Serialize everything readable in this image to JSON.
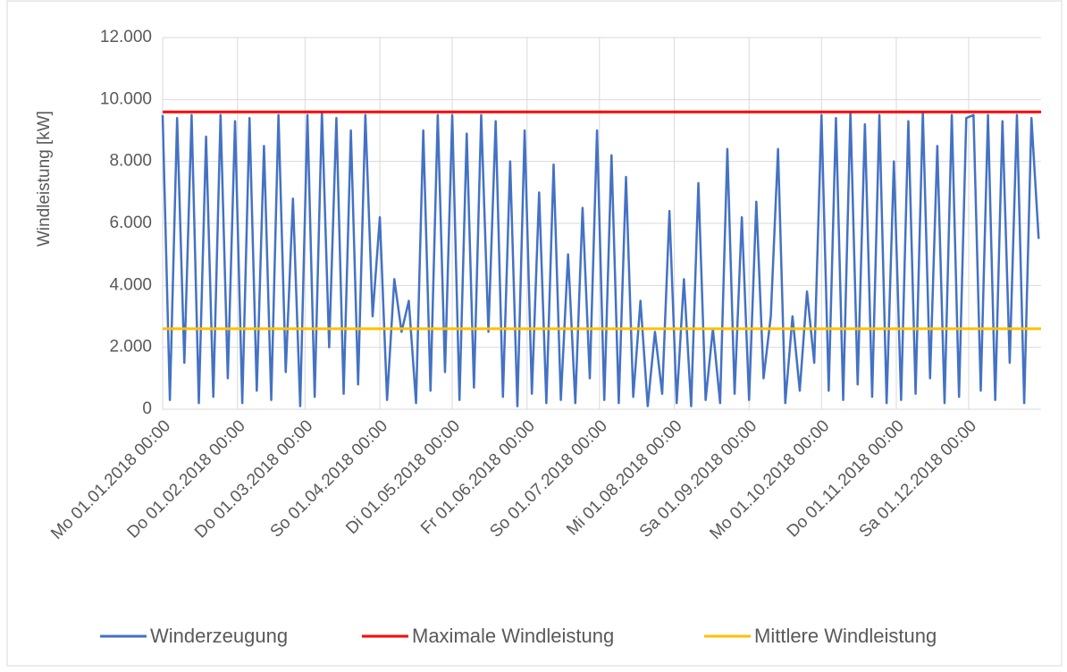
{
  "chart_data": {
    "type": "line",
    "ylabel": "Windleistung [kW]",
    "ylim": [
      0,
      12000
    ],
    "yticks": [
      0,
      {
        "value": 2000,
        "label": "2.000"
      },
      {
        "value": 4000,
        "label": "4.000"
      },
      {
        "value": 6000,
        "label": "6.000"
      },
      {
        "value": 8000,
        "label": "8.000"
      },
      {
        "value": 10000,
        "label": "10.000"
      },
      {
        "value": 12000,
        "label": "12.000"
      }
    ],
    "xlim": [
      "2018-01-01",
      "2018-12-31"
    ],
    "xticks": [
      {
        "value": "2018-01-01",
        "label": "Mo 01.01.2018 00:00"
      },
      {
        "value": "2018-02-01",
        "label": "Do 01.02.2018 00:00"
      },
      {
        "value": "2018-03-01",
        "label": "Do 01.03.2018 00:00"
      },
      {
        "value": "2018-04-01",
        "label": "So 01.04.2018 00:00"
      },
      {
        "value": "2018-05-01",
        "label": "Di 01.05.2018 00:00"
      },
      {
        "value": "2018-06-01",
        "label": "Fr 01.06.2018 00:00"
      },
      {
        "value": "2018-07-01",
        "label": "So 01.07.2018 00:00"
      },
      {
        "value": "2018-08-01",
        "label": "Mi 01.08.2018 00:00"
      },
      {
        "value": "2018-09-01",
        "label": "Sa 01.09.2018 00:00"
      },
      {
        "value": "2018-10-01",
        "label": "Mo 01.10.2018 00:00"
      },
      {
        "value": "2018-11-01",
        "label": "Do 01.11.2018 00:00"
      },
      {
        "value": "2018-12-01",
        "label": "Sa 01.12.2018 00:00"
      }
    ],
    "grid": true,
    "legend": "bottom",
    "series": [
      {
        "name": "Winderzeugung",
        "color": "#4472c4",
        "x": [
          "2018-01-01",
          "2018-01-04",
          "2018-01-07",
          "2018-01-10",
          "2018-01-13",
          "2018-01-16",
          "2018-01-19",
          "2018-01-22",
          "2018-01-25",
          "2018-01-28",
          "2018-01-31",
          "2018-02-03",
          "2018-02-06",
          "2018-02-09",
          "2018-02-12",
          "2018-02-15",
          "2018-02-18",
          "2018-02-21",
          "2018-02-24",
          "2018-02-27",
          "2018-03-02",
          "2018-03-05",
          "2018-03-08",
          "2018-03-11",
          "2018-03-14",
          "2018-03-17",
          "2018-03-20",
          "2018-03-23",
          "2018-03-26",
          "2018-03-29",
          "2018-04-01",
          "2018-04-04",
          "2018-04-07",
          "2018-04-10",
          "2018-04-13",
          "2018-04-16",
          "2018-04-19",
          "2018-04-22",
          "2018-04-25",
          "2018-04-28",
          "2018-05-01",
          "2018-05-04",
          "2018-05-07",
          "2018-05-10",
          "2018-05-13",
          "2018-05-16",
          "2018-05-19",
          "2018-05-22",
          "2018-05-25",
          "2018-05-28",
          "2018-05-31",
          "2018-06-03",
          "2018-06-06",
          "2018-06-09",
          "2018-06-12",
          "2018-06-15",
          "2018-06-18",
          "2018-06-21",
          "2018-06-24",
          "2018-06-27",
          "2018-06-30",
          "2018-07-03",
          "2018-07-06",
          "2018-07-09",
          "2018-07-12",
          "2018-07-15",
          "2018-07-18",
          "2018-07-21",
          "2018-07-24",
          "2018-07-27",
          "2018-07-30",
          "2018-08-02",
          "2018-08-05",
          "2018-08-08",
          "2018-08-11",
          "2018-08-14",
          "2018-08-17",
          "2018-08-20",
          "2018-08-23",
          "2018-08-26",
          "2018-08-29",
          "2018-09-01",
          "2018-09-04",
          "2018-09-07",
          "2018-09-10",
          "2018-09-13",
          "2018-09-16",
          "2018-09-19",
          "2018-09-22",
          "2018-09-25",
          "2018-09-28",
          "2018-10-01",
          "2018-10-04",
          "2018-10-07",
          "2018-10-10",
          "2018-10-13",
          "2018-10-16",
          "2018-10-19",
          "2018-10-22",
          "2018-10-25",
          "2018-10-28",
          "2018-10-31",
          "2018-11-03",
          "2018-11-06",
          "2018-11-09",
          "2018-11-12",
          "2018-11-15",
          "2018-11-18",
          "2018-11-21",
          "2018-11-24",
          "2018-11-27",
          "2018-11-30",
          "2018-12-03",
          "2018-12-06",
          "2018-12-09",
          "2018-12-12",
          "2018-12-15",
          "2018-12-18",
          "2018-12-21",
          "2018-12-24",
          "2018-12-27",
          "2018-12-30"
        ],
        "values": [
          9500,
          300,
          9400,
          1500,
          9500,
          200,
          8800,
          400,
          9500,
          1000,
          9300,
          200,
          9400,
          600,
          8500,
          300,
          9500,
          1200,
          6800,
          100,
          9500,
          400,
          9600,
          2000,
          9400,
          500,
          9000,
          800,
          9500,
          3000,
          6200,
          300,
          4200,
          2500,
          3500,
          200,
          9000,
          600,
          9500,
          1200,
          9500,
          300,
          8900,
          700,
          9500,
          2500,
          9300,
          400,
          8000,
          100,
          9000,
          500,
          7000,
          200,
          7900,
          300,
          5000,
          200,
          6500,
          1000,
          9000,
          300,
          8200,
          200,
          7500,
          400,
          3500,
          100,
          2500,
          500,
          6400,
          200,
          4200,
          100,
          7300,
          300,
          2600,
          200,
          8400,
          500,
          6200,
          300,
          6700,
          1000,
          3000,
          8400,
          200,
          3000,
          600,
          3800,
          1500,
          9500,
          600,
          9400,
          300,
          9600,
          800,
          9200,
          400,
          9500,
          200,
          8000,
          300,
          9300,
          500,
          9600,
          1000,
          8500,
          200,
          9500,
          400,
          9400,
          9500,
          600,
          9500,
          300,
          9300,
          1500,
          9500,
          200,
          9400,
          5500
        ]
      },
      {
        "name": "Maximale Windleistung",
        "color": "#ff0000",
        "x": [
          "2018-01-01",
          "2018-12-31"
        ],
        "values": [
          9600,
          9600
        ]
      },
      {
        "name": "Mittlere Windleistung",
        "color": "#ffc000",
        "x": [
          "2018-01-01",
          "2018-12-31"
        ],
        "values": [
          2600,
          2600
        ]
      }
    ]
  }
}
